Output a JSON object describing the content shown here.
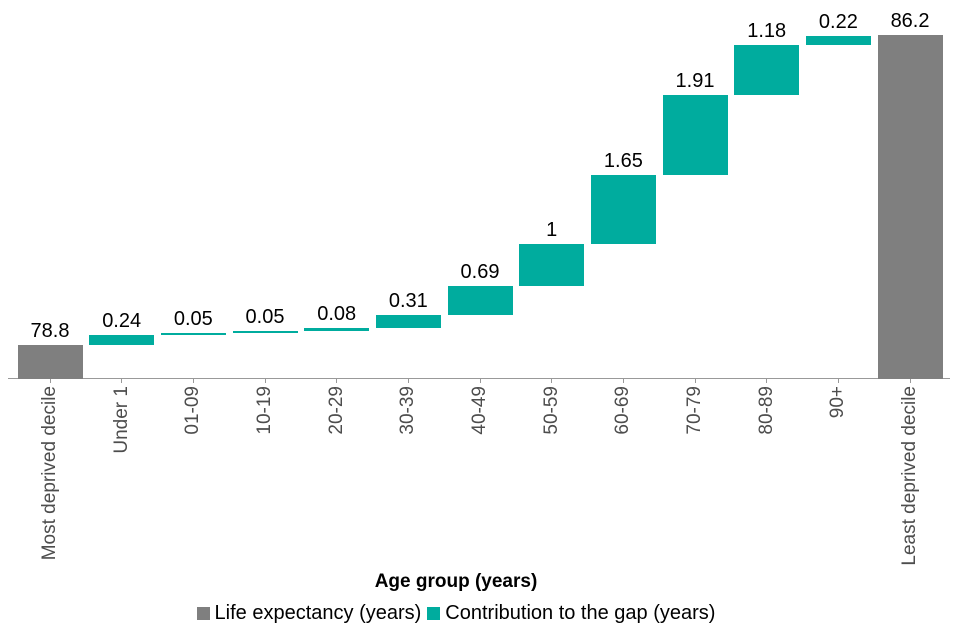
{
  "chart_data": {
    "type": "bar",
    "subtype": "waterfall",
    "title": "",
    "xlabel": "Age group (years)",
    "ylabel": "",
    "ylim": [
      78,
      86.3
    ],
    "grid": false,
    "legend_position": "bottom",
    "categories": [
      "Most deprived decile",
      "Under 1",
      "01-09",
      "10-19",
      "20-29",
      "30-39",
      "40-49",
      "50-59",
      "60-69",
      "70-79",
      "80-89",
      "90+",
      "Least deprived decile"
    ],
    "bars": [
      {
        "label": "Most deprived decile",
        "value": 78.8,
        "display": "78.8",
        "kind": "total"
      },
      {
        "label": "Under 1",
        "value": 0.24,
        "display": "0.24",
        "kind": "delta"
      },
      {
        "label": "01-09",
        "value": 0.05,
        "display": "0.05",
        "kind": "delta"
      },
      {
        "label": "10-19",
        "value": 0.05,
        "display": "0.05",
        "kind": "delta"
      },
      {
        "label": "20-29",
        "value": 0.08,
        "display": "0.08",
        "kind": "delta"
      },
      {
        "label": "30-39",
        "value": 0.31,
        "display": "0.31",
        "kind": "delta"
      },
      {
        "label": "40-49",
        "value": 0.69,
        "display": "0.69",
        "kind": "delta"
      },
      {
        "label": "50-59",
        "value": 1,
        "display": "1",
        "kind": "delta"
      },
      {
        "label": "60-69",
        "value": 1.65,
        "display": "1.65",
        "kind": "delta"
      },
      {
        "label": "70-79",
        "value": 1.91,
        "display": "1.91",
        "kind": "delta"
      },
      {
        "label": "80-89",
        "value": 1.18,
        "display": "1.18",
        "kind": "delta"
      },
      {
        "label": "90+",
        "value": 0.22,
        "display": "0.22",
        "kind": "delta"
      },
      {
        "label": "Least deprived decile",
        "value": 86.2,
        "display": "86.2",
        "kind": "total"
      }
    ],
    "colors": {
      "total": "#7f7f7f",
      "delta": "#00ac9e"
    },
    "legend": [
      {
        "label": "Life expectancy (years)",
        "color": "#7f7f7f"
      },
      {
        "label": "Contribution to the gap (years)",
        "color": "#00ac9e"
      }
    ]
  }
}
